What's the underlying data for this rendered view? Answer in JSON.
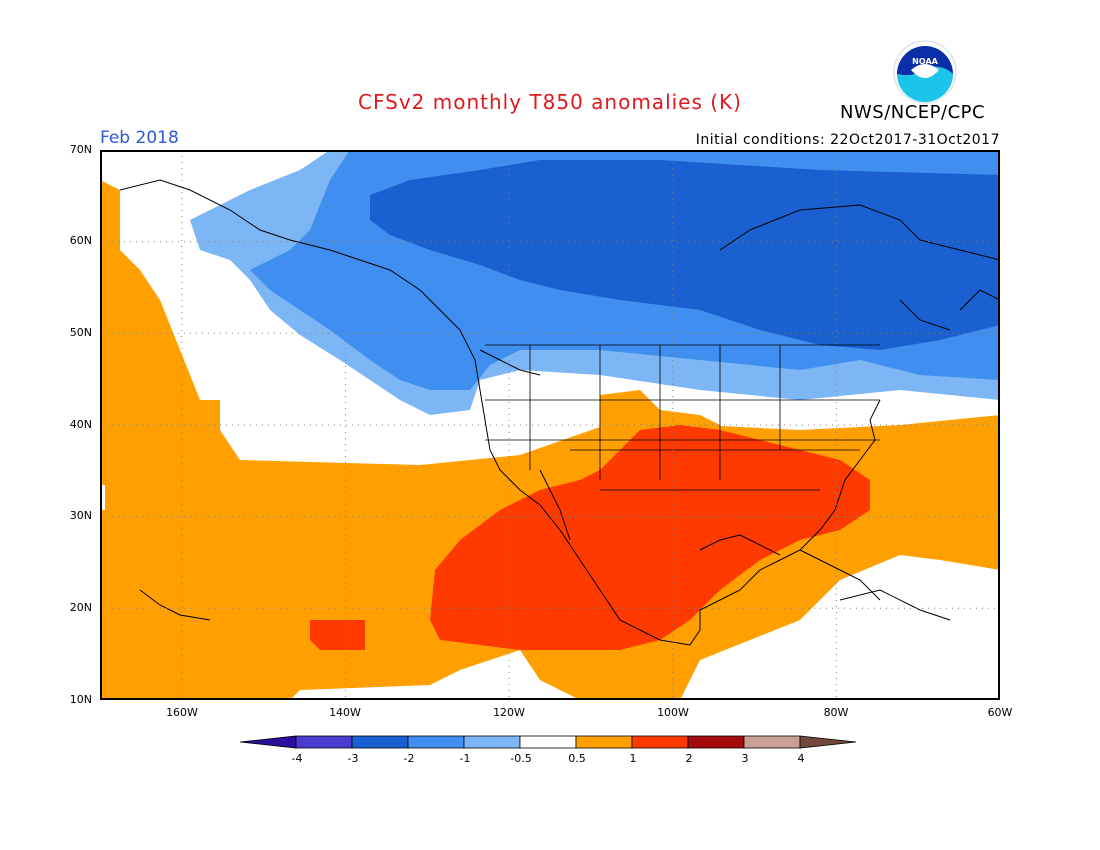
{
  "header": {
    "title": "CFSv2 monthly T850 anomalies (K)",
    "agency": "NWS/NCEP/CPC",
    "month": "Feb 2018",
    "initial_conditions": "Initial conditions: 22Oct2017-31Oct2017",
    "logo_text": "NOAA"
  },
  "map": {
    "lat_labels": [
      "70N",
      "60N",
      "50N",
      "40N",
      "30N",
      "20N",
      "10N"
    ],
    "lon_labels": [
      "160W",
      "140W",
      "120W",
      "100W",
      "80W",
      "60W"
    ]
  },
  "colorbar": {
    "labels": [
      "-4",
      "-3",
      "-2",
      "-1",
      "-0.5",
      "0.5",
      "1",
      "2",
      "3",
      "4"
    ],
    "colors": [
      "#2a0f9c",
      "#4c3dd0",
      "#1a60d0",
      "#3f8ef0",
      "#7cb6f4",
      "#ffffff",
      "#ffa000",
      "#ff3a00",
      "#a40c0c",
      "#c8a096",
      "#74473c"
    ]
  },
  "legend_colors": {
    "strong_cold": "#1a60d0",
    "cold": "#3f8ef0",
    "cool": "#7cb6f4",
    "neutral": "#ffffff",
    "warm": "#ffa000",
    "hot": "#ff3a00"
  }
}
